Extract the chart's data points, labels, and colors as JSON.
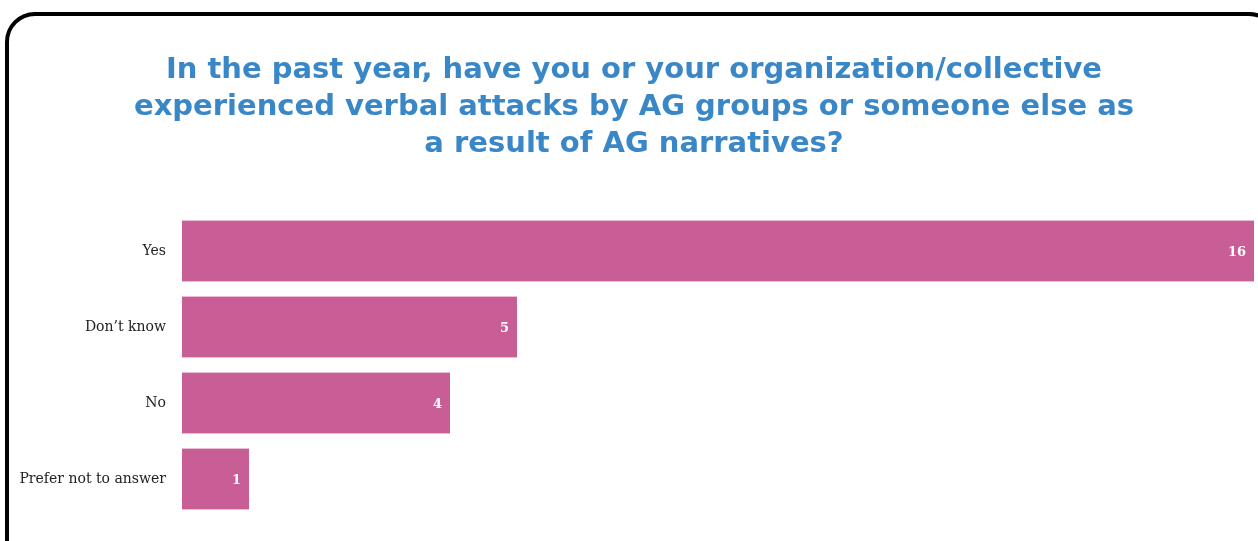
{
  "chart_data": {
    "type": "bar",
    "orientation": "horizontal",
    "title": "In the past year, have you or your organization/collective experienced verbal attacks by AG groups or someone else as a result of AG narratives?",
    "categories": [
      "Yes",
      "Don’t know",
      "No",
      "Prefer not to answer"
    ],
    "values": [
      16,
      5,
      4,
      1
    ],
    "color": "#c95d96",
    "data_labels": true
  }
}
